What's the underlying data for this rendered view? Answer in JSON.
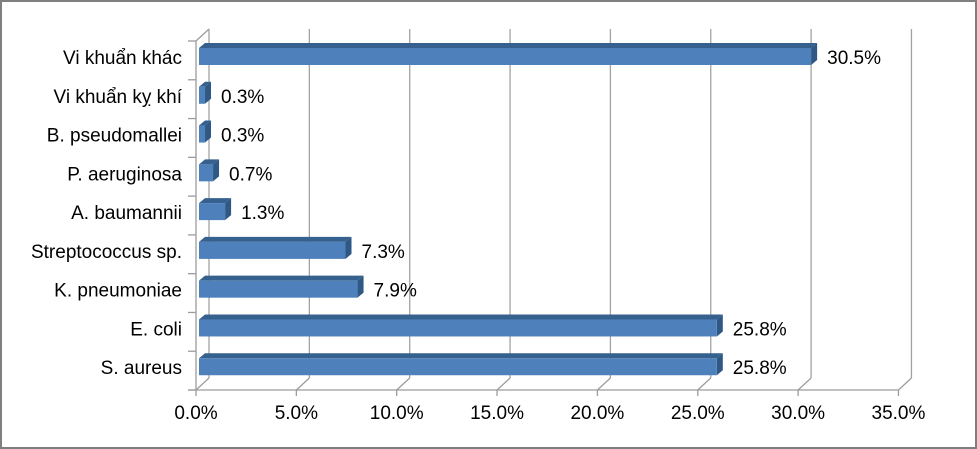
{
  "chart_data": {
    "type": "bar",
    "orientation": "horizontal",
    "style": "3d-clustered-bar",
    "title": "",
    "xlabel": "",
    "ylabel": "",
    "xlim": [
      0,
      35
    ],
    "x_tick_step_percent": 5,
    "x_tick_labels": [
      "0.0%",
      "5.0%",
      "10.0%",
      "15.0%",
      "20.0%",
      "25.0%",
      "30.0%",
      "35.0%"
    ],
    "categories_top_to_bottom": [
      "Vi khuẩn khác",
      "Vi khuẩn kỵ khí",
      "B. pseudomallei",
      "P. aeruginosa",
      "A. baumannii",
      "Streptococcus sp.",
      "K. pneumoniae",
      "E. coli",
      "S. aureus"
    ],
    "values_percent": [
      30.5,
      0.3,
      0.3,
      0.7,
      1.3,
      7.3,
      7.9,
      25.8,
      25.8
    ],
    "data_labels": [
      "30.5%",
      "0.3%",
      "0.3%",
      "0.7%",
      "1.3%",
      "7.3%",
      "7.9%",
      "25.8%",
      "25.8%"
    ],
    "grid": true,
    "legend": false,
    "colors": {
      "bar_face": "#4e80bc",
      "bar_top": "#36618f",
      "bar_end": "#2f5884",
      "gridline": "#a3a3a3",
      "axis": "#9c9c9c",
      "label_text": "#000000",
      "border": "#7f7f7f",
      "background": "#ffffff"
    }
  }
}
